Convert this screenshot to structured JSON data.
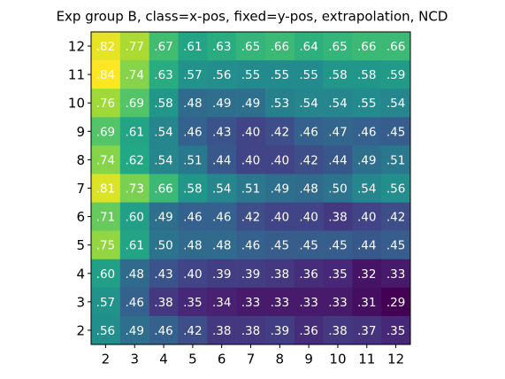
{
  "chart_data": {
    "type": "heatmap",
    "title": "Exp group B, class=x-pos, fixed=y-pos, extrapolation, NCD",
    "colormap": "viridis",
    "x": [
      2,
      3,
      4,
      5,
      6,
      7,
      8,
      9,
      10,
      11,
      12
    ],
    "y": [
      12,
      11,
      10,
      9,
      8,
      7,
      6,
      5,
      4,
      3,
      2
    ],
    "values": [
      [
        0.82,
        0.77,
        0.67,
        0.61,
        0.63,
        0.65,
        0.66,
        0.64,
        0.65,
        0.66,
        0.66
      ],
      [
        0.84,
        0.74,
        0.63,
        0.57,
        0.56,
        0.55,
        0.55,
        0.55,
        0.58,
        0.58,
        0.59
      ],
      [
        0.76,
        0.69,
        0.58,
        0.48,
        0.49,
        0.49,
        0.53,
        0.54,
        0.54,
        0.55,
        0.54
      ],
      [
        0.69,
        0.61,
        0.54,
        0.46,
        0.43,
        0.4,
        0.42,
        0.46,
        0.47,
        0.46,
        0.45
      ],
      [
        0.74,
        0.62,
        0.54,
        0.51,
        0.44,
        0.4,
        0.4,
        0.42,
        0.44,
        0.49,
        0.51
      ],
      [
        0.81,
        0.73,
        0.66,
        0.58,
        0.54,
        0.51,
        0.49,
        0.48,
        0.5,
        0.54,
        0.56
      ],
      [
        0.71,
        0.6,
        0.49,
        0.46,
        0.46,
        0.42,
        0.4,
        0.4,
        0.38,
        0.4,
        0.42
      ],
      [
        0.75,
        0.61,
        0.5,
        0.48,
        0.48,
        0.46,
        0.45,
        0.45,
        0.45,
        0.44,
        0.45
      ],
      [
        0.6,
        0.48,
        0.43,
        0.4,
        0.39,
        0.39,
        0.38,
        0.36,
        0.35,
        0.32,
        0.33
      ],
      [
        0.57,
        0.46,
        0.38,
        0.35,
        0.34,
        0.33,
        0.33,
        0.33,
        0.33,
        0.31,
        0.29
      ],
      [
        0.56,
        0.49,
        0.46,
        0.42,
        0.38,
        0.38,
        0.39,
        0.36,
        0.38,
        0.37,
        0.35
      ]
    ],
    "value_labels": [
      [
        ".82",
        ".77",
        ".67",
        ".61",
        ".63",
        ".65",
        ".66",
        ".64",
        ".65",
        ".66",
        ".66"
      ],
      [
        ".84",
        ".74",
        ".63",
        ".57",
        ".56",
        ".55",
        ".55",
        ".55",
        ".58",
        ".58",
        ".59"
      ],
      [
        ".76",
        ".69",
        ".58",
        ".48",
        ".49",
        ".49",
        ".53",
        ".54",
        ".54",
        ".55",
        ".54"
      ],
      [
        ".69",
        ".61",
        ".54",
        ".46",
        ".43",
        ".40",
        ".42",
        ".46",
        ".47",
        ".46",
        ".45"
      ],
      [
        ".74",
        ".62",
        ".54",
        ".51",
        ".44",
        ".40",
        ".40",
        ".42",
        ".44",
        ".49",
        ".51"
      ],
      [
        ".81",
        ".73",
        ".66",
        ".58",
        ".54",
        ".51",
        ".49",
        ".48",
        ".50",
        ".54",
        ".56"
      ],
      [
        ".71",
        ".60",
        ".49",
        ".46",
        ".46",
        ".42",
        ".40",
        ".40",
        ".38",
        ".40",
        ".42"
      ],
      [
        ".75",
        ".61",
        ".50",
        ".48",
        ".48",
        ".46",
        ".45",
        ".45",
        ".45",
        ".44",
        ".45"
      ],
      [
        ".60",
        ".48",
        ".43",
        ".40",
        ".39",
        ".39",
        ".38",
        ".36",
        ".35",
        ".32",
        ".33"
      ],
      [
        ".57",
        ".46",
        ".38",
        ".35",
        ".34",
        ".33",
        ".33",
        ".33",
        ".33",
        ".31",
        ".29"
      ],
      [
        ".56",
        ".49",
        ".46",
        ".42",
        ".38",
        ".38",
        ".39",
        ".36",
        ".38",
        ".37",
        ".35"
      ]
    ]
  }
}
